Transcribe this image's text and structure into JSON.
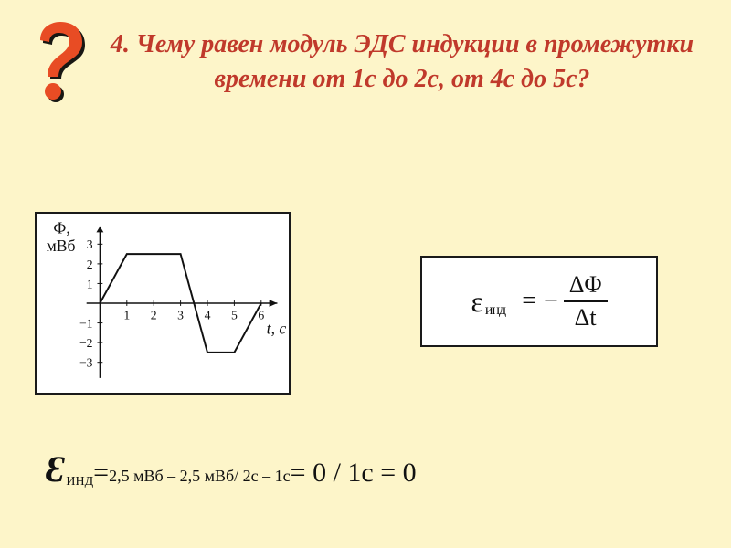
{
  "title": {
    "text": "4. Чему равен модуль ЭДС индукции в промежутки времени от 1с до 2с, от 4с до 5с?",
    "color": "#c0392b",
    "fontsize": 28
  },
  "qmark": {
    "fill": "#e84c24",
    "shadow": "#000000"
  },
  "chart": {
    "type": "line",
    "ylabel_top": "Ф,",
    "ylabel_bottom": "мВб",
    "xlabel": "t, с",
    "x_ticks": [
      "1",
      "2",
      "3",
      "4",
      "5",
      "6"
    ],
    "y_ticks_pos": [
      "1",
      "2",
      "3"
    ],
    "y_ticks_neg": [
      "−1",
      "−2",
      "−3"
    ],
    "xlim": [
      0,
      6.5
    ],
    "ylim": [
      -3.5,
      3.5
    ],
    "points": [
      [
        0,
        0
      ],
      [
        1,
        2.5
      ],
      [
        3,
        2.5
      ],
      [
        4,
        -2.5
      ],
      [
        5,
        -2.5
      ],
      [
        6,
        0
      ]
    ],
    "line_color": "#111111",
    "line_width": 2,
    "axis_color": "#111111",
    "background": "#ffffff",
    "border_color": "#1a1a1a",
    "tick_fontsize": 14,
    "label_fontsize": 18
  },
  "formula": {
    "eps": "ε",
    "sub": "инд",
    "equals": "=",
    "minus": "−",
    "numerator": "ΔΦ",
    "denominator": "Δt",
    "text_color": "#111111",
    "background": "#ffffff",
    "border_color": "#1a1a1a"
  },
  "answer": {
    "eps": "Ɛ",
    "eps_color": "#111111",
    "eps_fontsize": 40,
    "sub": "ИНД",
    "eq1": " = ",
    "part1": "2,5 мВб – 2,5 мВб/ 2с – 1с",
    "eq2": " = 0 / 1с = 0",
    "text_color": "#111111"
  }
}
